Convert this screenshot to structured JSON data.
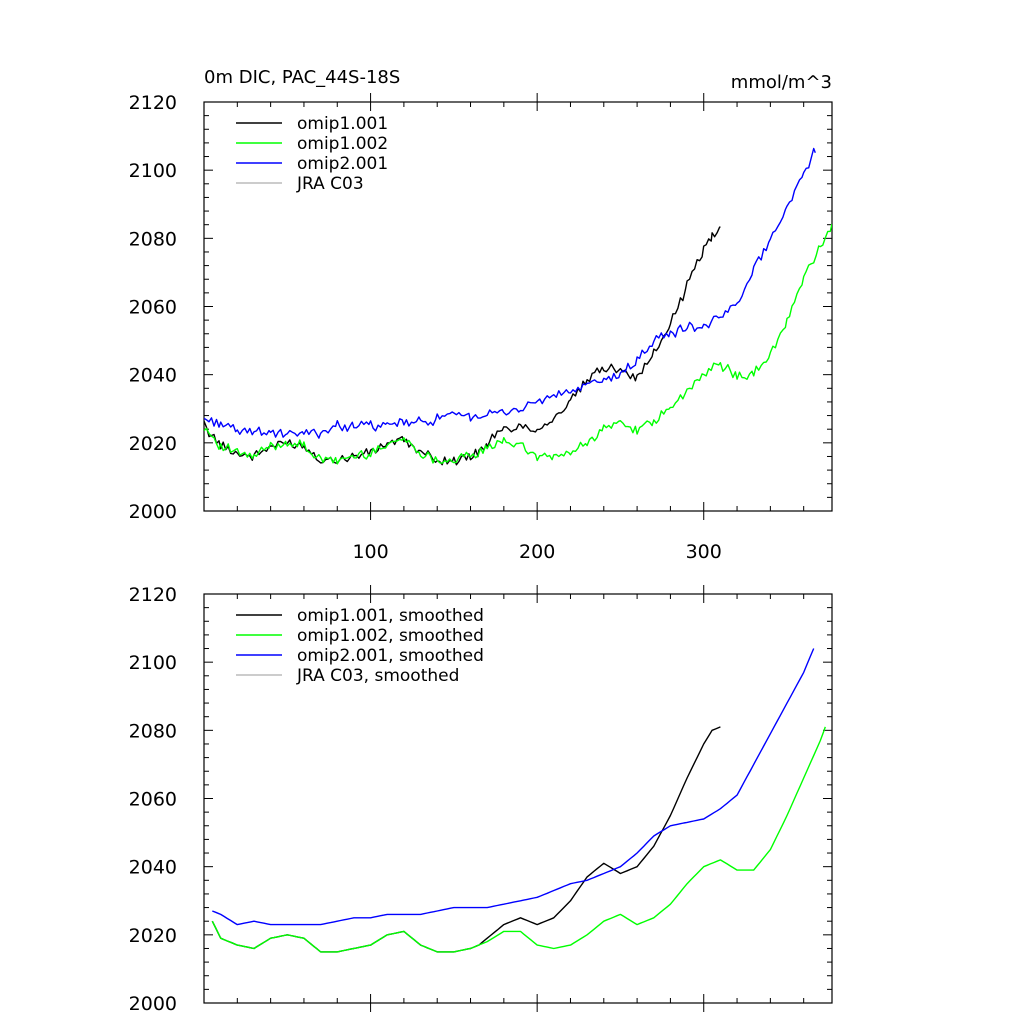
{
  "chart_data": [
    {
      "type": "line",
      "title": "0m DIC, PAC_44S-18S",
      "units": "mmol/m^3",
      "xlim": [
        0,
        377
      ],
      "ylim": [
        2000,
        2120
      ],
      "xticks": [
        100,
        200,
        300
      ],
      "xtick_labels": [
        "100",
        "200",
        "300"
      ],
      "yticks": [
        2000,
        2020,
        2040,
        2060,
        2080,
        2100,
        2120
      ],
      "ytick_labels": [
        "2000",
        "2020",
        "2040",
        "2060",
        "2080",
        "2100",
        "2120"
      ],
      "legend_position": "top-left",
      "noise": true,
      "series": [
        {
          "name": "omip1.001",
          "color": "#000000",
          "x": [
            0,
            10,
            20,
            30,
            40,
            50,
            60,
            70,
            80,
            90,
            100,
            110,
            120,
            130,
            140,
            150,
            160,
            165,
            170,
            180,
            190,
            200,
            210,
            220,
            230,
            240,
            250,
            260,
            270,
            280,
            290,
            300,
            305,
            310
          ],
          "y": [
            2025,
            2019,
            2017,
            2016,
            2019,
            2020,
            2019,
            2015,
            2015,
            2016,
            2017,
            2020,
            2021,
            2017,
            2015,
            2015,
            2016,
            2017,
            2020,
            2024,
            2025,
            2024,
            2027,
            2032,
            2038,
            2042,
            2042,
            2039,
            2046,
            2055,
            2066,
            2077,
            2081,
            2083
          ]
        },
        {
          "name": "omip1.002",
          "color": "#00ff00",
          "x": [
            0,
            10,
            20,
            30,
            40,
            50,
            60,
            70,
            80,
            90,
            100,
            110,
            120,
            130,
            140,
            150,
            160,
            170,
            180,
            190,
            200,
            210,
            220,
            230,
            240,
            250,
            260,
            270,
            280,
            290,
            300,
            310,
            320,
            330,
            340,
            350,
            360,
            370,
            377
          ],
          "y": [
            2025,
            2019,
            2017,
            2016,
            2019,
            2020,
            2019,
            2015,
            2015,
            2016,
            2017,
            2020,
            2021,
            2017,
            2015,
            2015,
            2016,
            2018,
            2021,
            2019,
            2016,
            2016,
            2017,
            2020,
            2024,
            2026,
            2024,
            2026,
            2030,
            2035,
            2040,
            2043,
            2040,
            2040,
            2046,
            2056,
            2068,
            2078,
            2083
          ]
        },
        {
          "name": "omip2.001",
          "color": "#0000ff",
          "x": [
            0,
            10,
            20,
            30,
            40,
            50,
            60,
            70,
            80,
            90,
            100,
            110,
            120,
            130,
            140,
            150,
            160,
            170,
            180,
            190,
            200,
            210,
            220,
            230,
            240,
            250,
            260,
            270,
            280,
            290,
            300,
            310,
            320,
            330,
            340,
            350,
            360,
            367
          ],
          "y": [
            2027,
            2026,
            2023,
            2024,
            2023,
            2022,
            2023,
            2023,
            2025,
            2025,
            2025,
            2025,
            2026,
            2026,
            2027,
            2028,
            2028,
            2028,
            2029,
            2030,
            2032,
            2034,
            2035,
            2037,
            2038,
            2040,
            2044,
            2050,
            2052,
            2054,
            2054,
            2057,
            2061,
            2071,
            2080,
            2089,
            2099,
            2106
          ]
        },
        {
          "name": "JRA C03",
          "color": "#bbbbbb",
          "x": [],
          "y": []
        }
      ]
    },
    {
      "type": "line",
      "title": "",
      "xlim": [
        0,
        377
      ],
      "ylim": [
        2000,
        2120
      ],
      "xticks": [
        100,
        200,
        300
      ],
      "xtick_labels": [],
      "yticks": [
        2000,
        2020,
        2040,
        2060,
        2080,
        2100,
        2120
      ],
      "ytick_labels": [
        "2000",
        "2020",
        "2040",
        "2060",
        "2080",
        "2100",
        "2120"
      ],
      "legend_position": "top-left",
      "noise": false,
      "series": [
        {
          "name": "omip1.001, smoothed",
          "color": "#000000",
          "x": [
            5,
            10,
            20,
            30,
            40,
            50,
            60,
            70,
            80,
            90,
            100,
            110,
            120,
            130,
            140,
            150,
            160,
            165,
            170,
            180,
            190,
            200,
            210,
            220,
            230,
            240,
            250,
            260,
            270,
            280,
            290,
            300,
            305,
            310
          ],
          "y": [
            2024,
            2019,
            2017,
            2016,
            2019,
            2020,
            2019,
            2015,
            2015,
            2016,
            2017,
            2020,
            2021,
            2017,
            2015,
            2015,
            2016,
            2017,
            2019,
            2023,
            2025,
            2023,
            2025,
            2030,
            2037,
            2041,
            2038,
            2040,
            2046,
            2055,
            2066,
            2076,
            2080,
            2081
          ]
        },
        {
          "name": "omip1.002, smoothed",
          "color": "#00ff00",
          "x": [
            5,
            10,
            20,
            30,
            40,
            50,
            60,
            70,
            80,
            90,
            100,
            110,
            120,
            130,
            140,
            150,
            160,
            170,
            180,
            190,
            200,
            210,
            220,
            230,
            240,
            250,
            260,
            270,
            280,
            290,
            300,
            310,
            320,
            330,
            340,
            350,
            360,
            370,
            373
          ],
          "y": [
            2024,
            2019,
            2017,
            2016,
            2019,
            2020,
            2019,
            2015,
            2015,
            2016,
            2017,
            2020,
            2021,
            2017,
            2015,
            2015,
            2016,
            2018,
            2021,
            2021,
            2017,
            2016,
            2017,
            2020,
            2024,
            2026,
            2023,
            2025,
            2029,
            2035,
            2040,
            2042,
            2039,
            2039,
            2045,
            2055,
            2066,
            2077,
            2081
          ]
        },
        {
          "name": "omip2.001, smoothed",
          "color": "#0000ff",
          "x": [
            5,
            10,
            20,
            30,
            40,
            50,
            60,
            70,
            80,
            90,
            100,
            110,
            120,
            130,
            140,
            150,
            160,
            170,
            180,
            190,
            200,
            210,
            220,
            230,
            240,
            250,
            260,
            270,
            280,
            290,
            300,
            310,
            320,
            330,
            340,
            350,
            360,
            366
          ],
          "y": [
            2027,
            2026,
            2023,
            2024,
            2023,
            2023,
            2023,
            2023,
            2024,
            2025,
            2025,
            2026,
            2026,
            2026,
            2027,
            2028,
            2028,
            2028,
            2029,
            2030,
            2031,
            2033,
            2035,
            2036,
            2038,
            2040,
            2044,
            2049,
            2052,
            2053,
            2054,
            2057,
            2061,
            2070,
            2079,
            2088,
            2097,
            2104
          ]
        },
        {
          "name": "JRA C03, smoothed",
          "color": "#bbbbbb",
          "x": [],
          "y": []
        }
      ]
    }
  ]
}
